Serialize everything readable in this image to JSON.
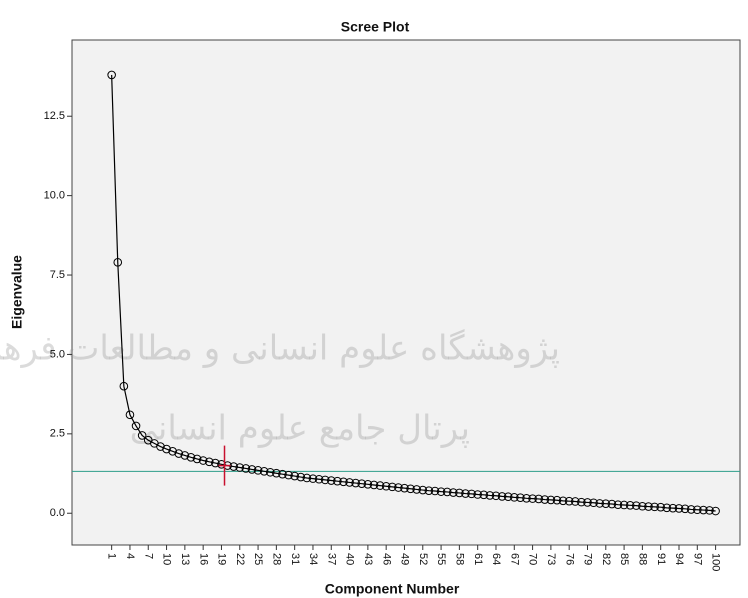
{
  "chart_data": {
    "type": "line",
    "title": "Scree Plot",
    "x_label": "Component Number",
    "y_label": "Eigenvalue",
    "watermark": [
      "پژوهشگاه علوم انسانی و مطالعات فرهنگی",
      "پرتال جامع علوم انسانی"
    ],
    "x": [
      1,
      2,
      3,
      4,
      5,
      6,
      7,
      8,
      9,
      10,
      11,
      12,
      13,
      14,
      15,
      16,
      17,
      18,
      19,
      20,
      21,
      22,
      23,
      24,
      25,
      26,
      27,
      28,
      29,
      30,
      31,
      32,
      33,
      34,
      35,
      36,
      37,
      38,
      39,
      40,
      41,
      42,
      43,
      44,
      45,
      46,
      47,
      48,
      49,
      50,
      51,
      52,
      53,
      54,
      55,
      56,
      57,
      58,
      59,
      60,
      61,
      62,
      63,
      64,
      65,
      66,
      67,
      68,
      69,
      70,
      71,
      72,
      73,
      74,
      75,
      76,
      77,
      78,
      79,
      80,
      81,
      82,
      83,
      84,
      85,
      86,
      87,
      88,
      89,
      90,
      91,
      92,
      93,
      94,
      95,
      96,
      97,
      98,
      99,
      100
    ],
    "series": [
      {
        "color": "#000000",
        "values": [
          13.8,
          7.9,
          4.0,
          3.1,
          2.75,
          2.45,
          2.3,
          2.2,
          2.1,
          2.02,
          1.95,
          1.88,
          1.82,
          1.76,
          1.71,
          1.66,
          1.62,
          1.58,
          1.54,
          1.5,
          1.47,
          1.44,
          1.41,
          1.38,
          1.35,
          1.32,
          1.29,
          1.26,
          1.23,
          1.2,
          1.17,
          1.14,
          1.11,
          1.09,
          1.07,
          1.05,
          1.03,
          1.01,
          0.99,
          0.97,
          0.95,
          0.93,
          0.91,
          0.89,
          0.87,
          0.85,
          0.83,
          0.81,
          0.79,
          0.77,
          0.75,
          0.73,
          0.71,
          0.7,
          0.68,
          0.67,
          0.65,
          0.64,
          0.62,
          0.61,
          0.59,
          0.58,
          0.56,
          0.55,
          0.53,
          0.52,
          0.5,
          0.49,
          0.47,
          0.46,
          0.45,
          0.43,
          0.42,
          0.41,
          0.39,
          0.38,
          0.37,
          0.35,
          0.34,
          0.33,
          0.31,
          0.3,
          0.29,
          0.27,
          0.26,
          0.25,
          0.24,
          0.22,
          0.21,
          0.2,
          0.19,
          0.17,
          0.16,
          0.15,
          0.14,
          0.12,
          0.11,
          0.1,
          0.09,
          0.07
        ]
      }
    ],
    "reference_line": {
      "y": 1.32,
      "color": "#2e9e8a"
    },
    "marker": {
      "x": 19.5,
      "y": 1.5,
      "color": "#c8102e"
    },
    "xlim": [
      -5.5,
      104
    ],
    "xticks": [
      1,
      4,
      7,
      10,
      13,
      16,
      19,
      22,
      25,
      28,
      31,
      34,
      37,
      40,
      43,
      46,
      49,
      52,
      55,
      58,
      61,
      64,
      67,
      70,
      73,
      76,
      79,
      82,
      85,
      88,
      91,
      94,
      97,
      100
    ],
    "ylim": [
      -1.0,
      14.9
    ],
    "yticks": [
      {
        "value": 0,
        "label": "0.0"
      },
      2.5,
      {
        "value": 5,
        "label": "5.0"
      },
      7.5,
      {
        "value": 10,
        "label": "10.0"
      },
      12.5
    ]
  }
}
